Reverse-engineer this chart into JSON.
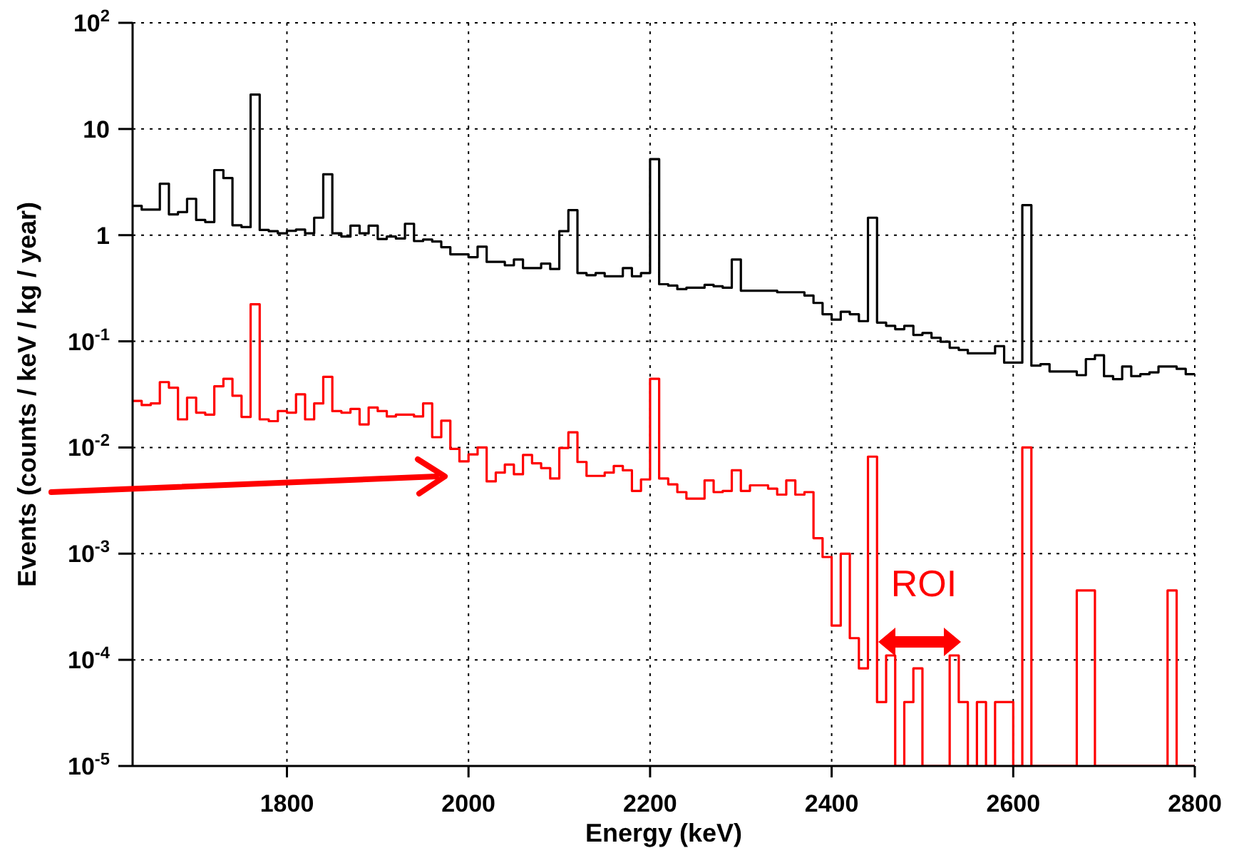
{
  "chart_data": {
    "type": "histogram",
    "xlabel": "Energy (keV)",
    "ylabel": "Events (counts / keV / kg / year)",
    "bins": [
      1630,
      1640,
      1650,
      1660,
      1670,
      1680,
      1690,
      1700,
      1710,
      1720,
      1730,
      1740,
      1750,
      1760,
      1770,
      1780,
      1790,
      1800,
      1810,
      1820,
      1830,
      1840,
      1850,
      1860,
      1870,
      1880,
      1890,
      1900,
      1910,
      1920,
      1930,
      1940,
      1950,
      1960,
      1970,
      1980,
      1990,
      2000,
      2010,
      2020,
      2030,
      2040,
      2050,
      2060,
      2070,
      2080,
      2090,
      2100,
      2110,
      2120,
      2130,
      2140,
      2150,
      2160,
      2170,
      2180,
      2190,
      2200,
      2210,
      2220,
      2230,
      2240,
      2250,
      2260,
      2270,
      2280,
      2290,
      2300,
      2310,
      2320,
      2330,
      2340,
      2350,
      2360,
      2370,
      2380,
      2390,
      2400,
      2410,
      2420,
      2430,
      2440,
      2450,
      2460,
      2470,
      2480,
      2490,
      2500,
      2510,
      2520,
      2530,
      2540,
      2550,
      2560,
      2570,
      2580,
      2590,
      2600,
      2610,
      2620,
      2630,
      2640,
      2650,
      2660,
      2670,
      2680,
      2690,
      2700,
      2710,
      2720,
      2730,
      2740,
      2750,
      2760,
      2770,
      2780,
      2790,
      2800
    ],
    "series": [
      {
        "color": "#000000",
        "values": [
          1.89,
          1.74,
          1.74,
          3.05,
          1.57,
          1.65,
          2.2,
          1.39,
          1.33,
          4.1,
          3.45,
          1.24,
          1.19,
          21.1,
          1.12,
          1.09,
          1.04,
          1.1,
          1.13,
          1.04,
          1.46,
          3.74,
          1.04,
          0.97,
          1.23,
          1.04,
          1.23,
          0.92,
          0.97,
          0.93,
          1.28,
          0.88,
          0.91,
          0.87,
          0.77,
          0.66,
          0.66,
          0.62,
          0.78,
          0.56,
          0.56,
          0.52,
          0.59,
          0.49,
          0.49,
          0.54,
          0.48,
          1.09,
          1.72,
          0.44,
          0.42,
          0.44,
          0.41,
          0.41,
          0.49,
          0.41,
          0.44,
          5.2,
          0.345,
          0.335,
          0.31,
          0.32,
          0.32,
          0.34,
          0.33,
          0.32,
          0.59,
          0.3,
          0.3,
          0.3,
          0.3,
          0.29,
          0.29,
          0.29,
          0.27,
          0.23,
          0.18,
          0.16,
          0.19,
          0.18,
          0.155,
          1.46,
          0.15,
          0.14,
          0.13,
          0.14,
          0.115,
          0.12,
          0.108,
          0.099,
          0.087,
          0.083,
          0.077,
          0.077,
          0.077,
          0.09,
          0.063,
          0.063,
          1.92,
          0.059,
          0.061,
          0.052,
          0.052,
          0.052,
          0.048,
          0.068,
          0.074,
          0.047,
          0.044,
          0.058,
          0.047,
          0.049,
          0.051,
          0.058,
          0.058,
          0.055,
          0.049
        ]
      },
      {
        "color": "#ff0000",
        "values": [
          0.0275,
          0.0251,
          0.026,
          0.0413,
          0.0366,
          0.0184,
          0.0295,
          0.0213,
          0.0204,
          0.0377,
          0.0443,
          0.0307,
          0.0194,
          0.223,
          0.0184,
          0.0177,
          0.022,
          0.0213,
          0.0317,
          0.0184,
          0.026,
          0.0463,
          0.022,
          0.0213,
          0.0231,
          0.0165,
          0.0238,
          0.022,
          0.0196,
          0.0204,
          0.0204,
          0.0196,
          0.026,
          0.0125,
          0.0179,
          0.0097,
          0.0074,
          0.0086,
          0.01,
          0.0048,
          0.0058,
          0.0069,
          0.0056,
          0.0085,
          0.0071,
          0.0064,
          0.0051,
          0.0099,
          0.0139,
          0.0073,
          0.0054,
          0.0054,
          0.0058,
          0.0067,
          0.0061,
          0.0039,
          0.005,
          0.0444,
          0.0051,
          0.0045,
          0.0038,
          0.0033,
          0.0033,
          0.0049,
          0.0038,
          0.0039,
          0.0061,
          0.0039,
          0.0044,
          0.0044,
          0.0041,
          0.0036,
          0.0049,
          0.0036,
          0.0038,
          0.0014,
          0.00093,
          0.00021,
          0.001,
          0.00016,
          8.3e-05,
          0.0082,
          4e-05,
          0.00011,
          null,
          4e-05,
          8.3e-05,
          null,
          null,
          null,
          0.00011,
          4e-05,
          null,
          4e-05,
          null,
          4e-05,
          4e-05,
          null,
          0.01,
          null,
          null,
          null,
          null,
          null,
          0.00045,
          0.00045,
          null,
          null,
          null,
          null,
          null,
          null,
          null,
          null,
          0.00045,
          null,
          null
        ]
      }
    ],
    "xlim": [
      1630,
      2800
    ],
    "xticks": [
      1800,
      2000,
      2200,
      2400,
      2600,
      2800
    ],
    "ylim": [
      1e-05,
      100
    ],
    "yticks": [
      {
        "value": 100,
        "label": "10$^{2}$"
      },
      10,
      1,
      {
        "value": 0.1,
        "label": "10$^{-1}$"
      },
      {
        "value": 0.01,
        "label": "10$^{-2}$"
      },
      {
        "value": 0.001,
        "label": "10$^{-3}$"
      },
      {
        "value": 0.0001,
        "label": "10$^{-4}$"
      },
      {
        "value": 1e-05,
        "label": "10$^{-5}$"
      }
    ],
    "log": true,
    "grid": true,
    "annotations": [
      "ROI"
    ]
  }
}
